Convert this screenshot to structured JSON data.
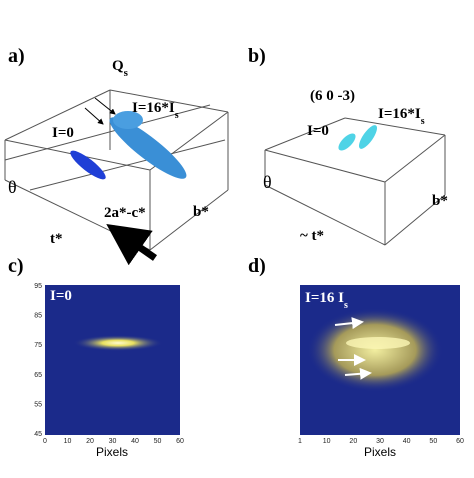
{
  "panel_a": {
    "label": "a)",
    "q": {
      "main": "Q",
      "sub": "s"
    },
    "high": {
      "main": "I=16*I",
      "sub": "s"
    },
    "low": "I=0",
    "theta": "θ",
    "direction": "2a*-c*",
    "t_axis": "t*",
    "b_axis": "b*"
  },
  "panel_b": {
    "label": "b)",
    "reflection": "(6 0 -3)",
    "high": {
      "main": "I=16*I",
      "sub": "s"
    },
    "low": "I=0",
    "theta": "θ",
    "t_axis": "~ t*",
    "b_axis": "b*"
  },
  "panel_c": {
    "label": "c)",
    "intensity": "I=0",
    "yticks": [
      "95",
      "85",
      "75",
      "65",
      "55",
      "45"
    ],
    "xticks": [
      "0",
      "10",
      "20",
      "30",
      "40",
      "50",
      "60"
    ],
    "xlabel": "Pixels"
  },
  "panel_d": {
    "label": "d)",
    "intensity": {
      "main": "I=16 I",
      "sub": "s"
    },
    "xticks": [
      "1",
      "10",
      "20",
      "30",
      "40",
      "50",
      "60"
    ],
    "xlabel": "Pixels"
  }
}
